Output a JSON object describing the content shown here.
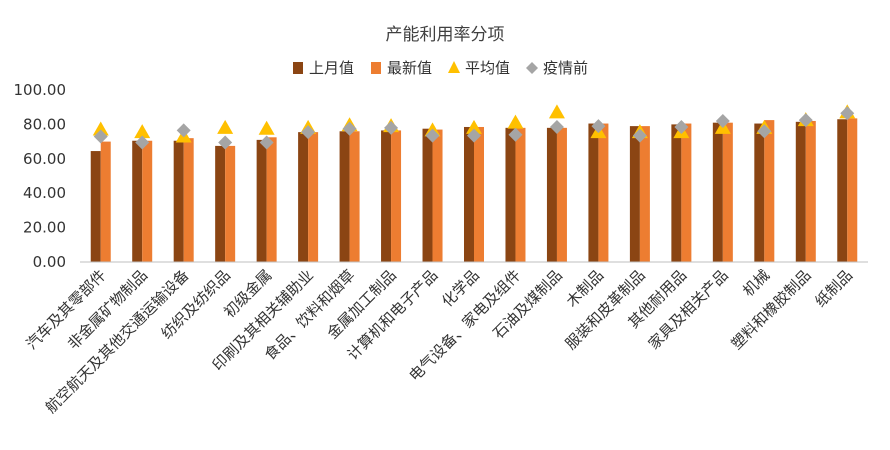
{
  "chart_data": {
    "type": "bar",
    "title": "产能利用率分项",
    "xlabel": "",
    "ylabel": "",
    "ylim": [
      0,
      100
    ],
    "yticks": [
      "0.00",
      "20.00",
      "40.00",
      "60.00",
      "80.00",
      "100.00"
    ],
    "legend_position": "top",
    "categories": [
      "汽车及其零部件",
      "非金属矿物制品",
      "航空航天及其他交通运输设备",
      "纺织及纺织品",
      "初级金属",
      "印刷及其相关辅助业",
      "食品、饮料和烟草",
      "金属加工制品",
      "计算机和电子产品",
      "化学品",
      "电气设备、家电及组件",
      "石油及煤制品",
      "木制品",
      "服装和皮革制品",
      "其他耐用品",
      "家具及相关产品",
      "机械",
      "塑料和橡胶制品",
      "纸制品"
    ],
    "series": [
      {
        "name": "上月值",
        "kind": "bar",
        "color": "#8B4513",
        "values": [
          64.5,
          70.5,
          70.5,
          67.5,
          71.0,
          75.5,
          76.0,
          76.5,
          77.5,
          78.5,
          78.0,
          78.0,
          80.5,
          79.0,
          80.0,
          81.0,
          80.5,
          81.5,
          83.0
        ]
      },
      {
        "name": "最新值",
        "kind": "bar",
        "color": "#ED7D31",
        "values": [
          70.0,
          70.5,
          72.0,
          67.5,
          72.5,
          75.5,
          76.0,
          76.5,
          77.0,
          78.5,
          78.0,
          78.0,
          80.5,
          79.0,
          80.5,
          81.0,
          82.5,
          82.0,
          83.5
        ]
      },
      {
        "name": "平均值",
        "kind": "triangle",
        "color": "#FFC000",
        "values": [
          77.0,
          75.5,
          73.0,
          78.0,
          77.5,
          78.0,
          79.5,
          79.0,
          76.5,
          78.0,
          81.0,
          87.0,
          75.5,
          75.5,
          75.5,
          78.0,
          78.0,
          82.5,
          87.0
        ]
      },
      {
        "name": "疫情前",
        "kind": "diamond",
        "color": "#A5A5A5",
        "values": [
          73.0,
          69.5,
          76.5,
          69.5,
          69.5,
          75.5,
          77.5,
          78.0,
          73.5,
          73.5,
          74.0,
          78.5,
          79.0,
          73.5,
          78.5,
          82.0,
          76.0,
          82.5,
          86.5
        ]
      }
    ]
  }
}
